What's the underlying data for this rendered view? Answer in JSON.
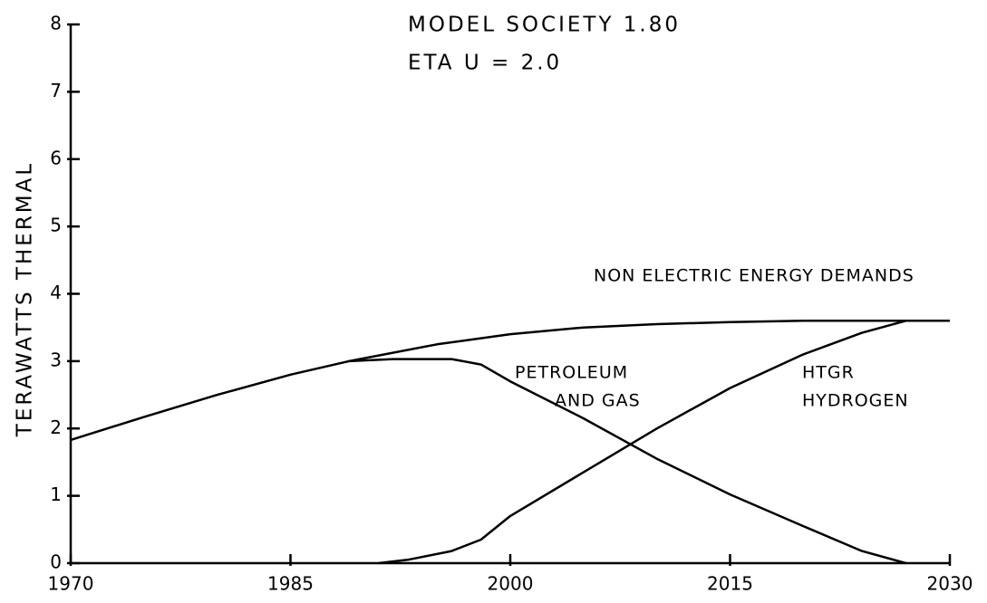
{
  "chart_data": {
    "type": "line",
    "title": "MODEL SOCIETY 1.80",
    "subtitle": "ETA U = 2.0",
    "y_label": "TERAWATTS THERMAL",
    "xlim": [
      1970,
      2030
    ],
    "xticks": [
      1970,
      1985,
      2000,
      2015,
      2030
    ],
    "ylim": [
      0,
      8
    ],
    "yticks": [
      0,
      1,
      2,
      3,
      4,
      5,
      6,
      7,
      8
    ],
    "grid": false,
    "series": [
      {
        "name": [
          "NON ELECTRIC ENERGY  DEMANDS"
        ],
        "color": "#000000",
        "x": [
          1970,
          1975,
          1980,
          1985,
          1989,
          1995,
          2000,
          2005,
          2010,
          2015,
          2020,
          2027,
          2030
        ],
        "values": [
          1.83,
          2.17,
          2.5,
          2.8,
          3.0,
          3.25,
          3.4,
          3.5,
          3.55,
          3.58,
          3.6,
          3.6,
          3.6
        ]
      },
      {
        "name": [
          "PETROLEUM",
          "AND GAS"
        ],
        "color": "#000000",
        "x": [
          1989,
          1992,
          1996,
          1998,
          2000,
          2005,
          2010,
          2015,
          2020,
          2024,
          2027
        ],
        "values": [
          3.0,
          3.03,
          3.03,
          2.95,
          2.7,
          2.15,
          1.55,
          1.02,
          0.55,
          0.18,
          0.0
        ]
      },
      {
        "name": [
          "HTGR",
          "HYDROGEN"
        ],
        "color": "#000000",
        "x": [
          1991,
          1993,
          1996,
          1998,
          2000,
          2005,
          2010,
          2015,
          2020,
          2024,
          2027
        ],
        "values": [
          0.0,
          0.05,
          0.18,
          0.35,
          0.7,
          1.35,
          2.0,
          2.6,
          3.1,
          3.42,
          3.6
        ]
      }
    ]
  }
}
